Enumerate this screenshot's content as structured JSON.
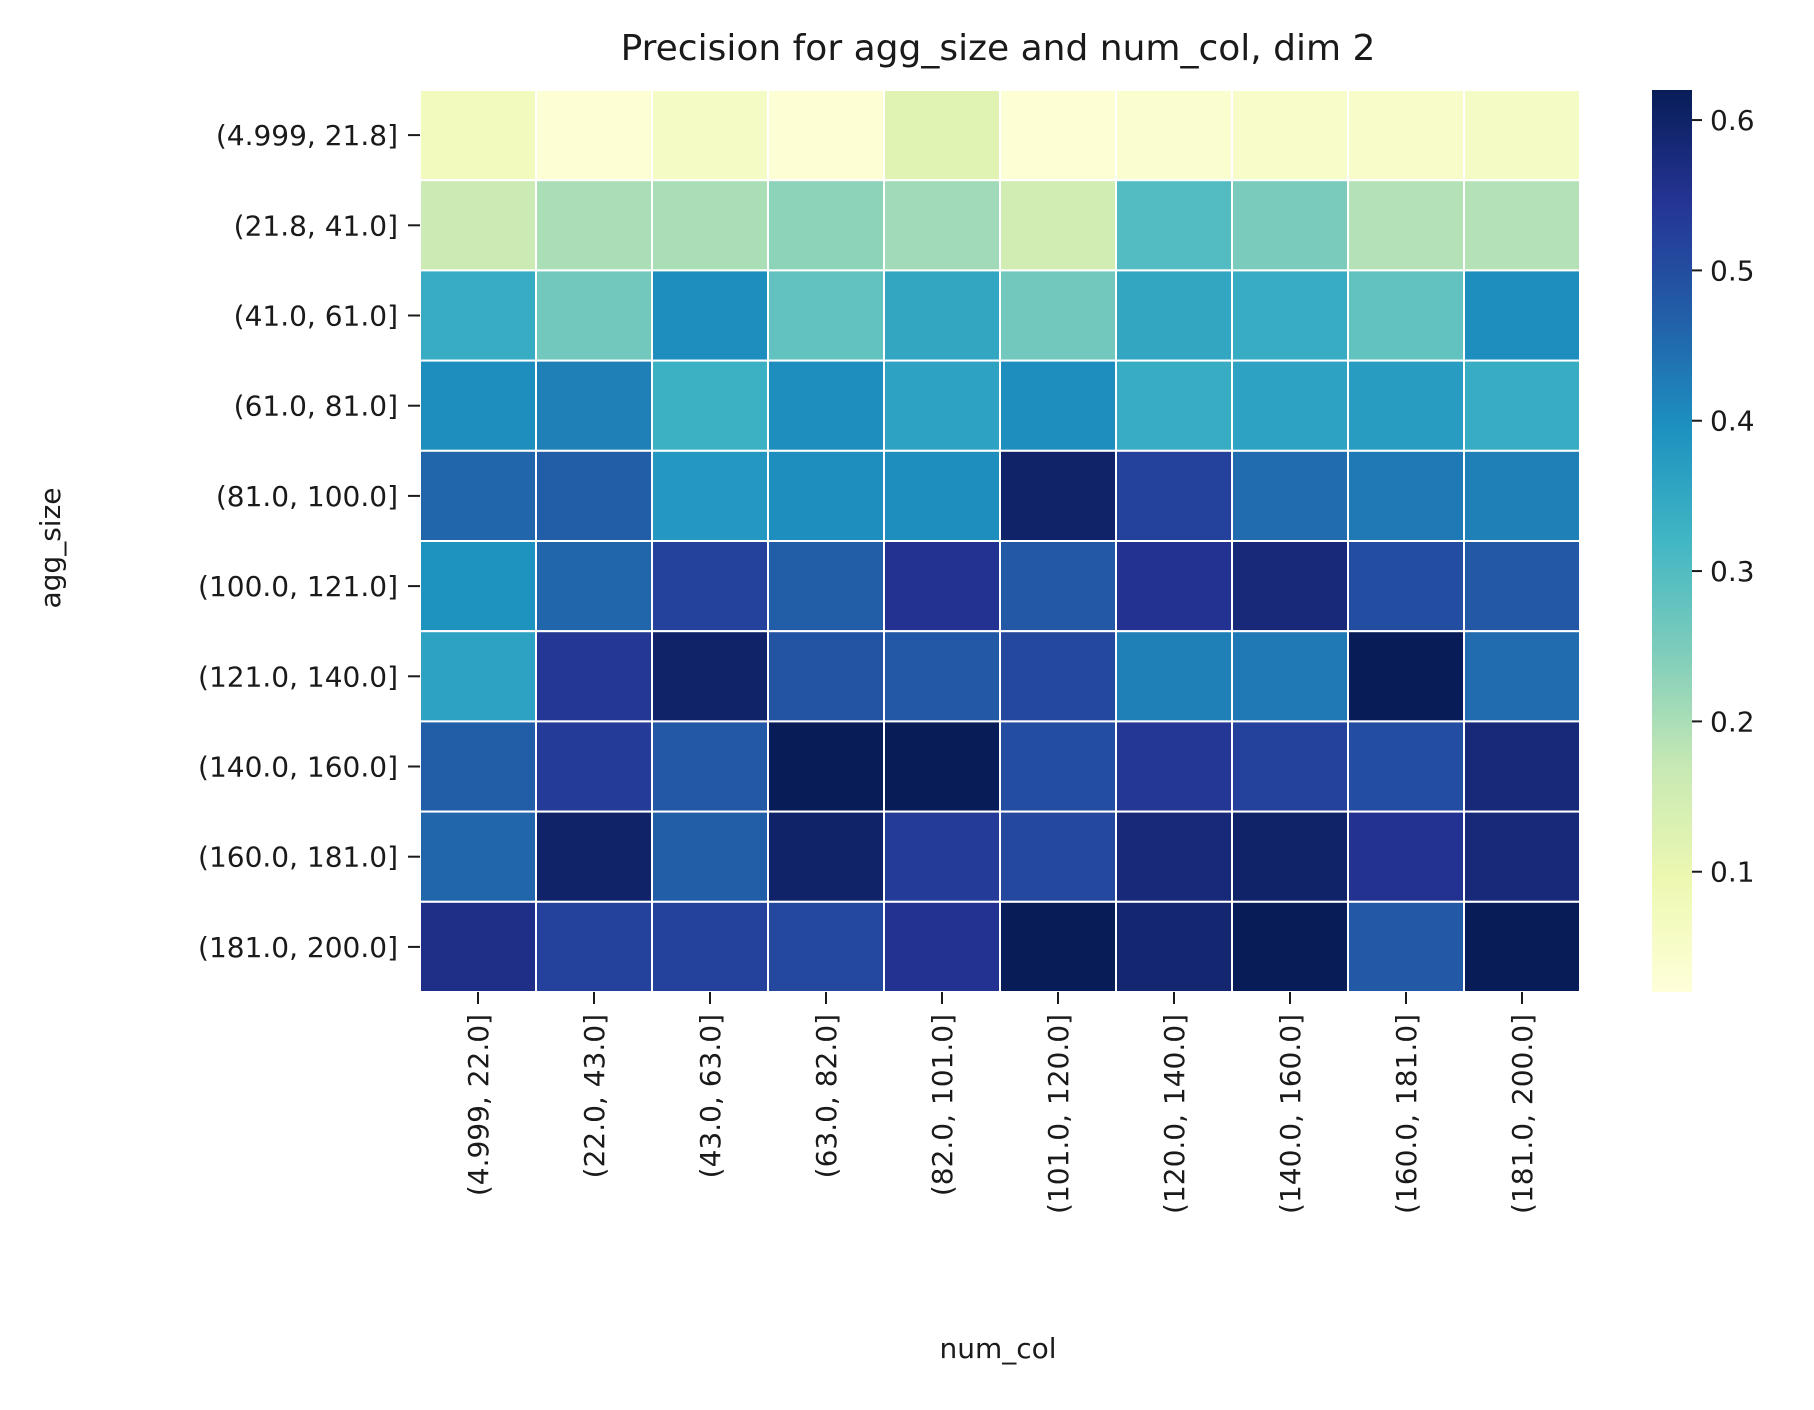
{
  "chart_data": {
    "type": "heatmap",
    "title": "Precision for agg_size and num_col, dim 2",
    "xlabel": "num_col",
    "ylabel": "agg_size",
    "x_categories": [
      "(4.999, 22.0]",
      "(22.0, 43.0]",
      "(43.0, 63.0]",
      "(63.0, 82.0]",
      "(82.0, 101.0]",
      "(101.0, 120.0]",
      "(120.0, 140.0]",
      "(140.0, 160.0]",
      "(160.0, 181.0]",
      "(181.0, 200.0]"
    ],
    "y_categories": [
      "(4.999, 21.8]",
      "(21.8, 41.0]",
      "(41.0, 61.0]",
      "(61.0, 81.0]",
      "(81.0, 100.0]",
      "(100.0, 121.0]",
      "(121.0, 140.0]",
      "(140.0, 160.0]",
      "(160.0, 181.0]",
      "(181.0, 200.0]"
    ],
    "values": [
      [
        0.07,
        0.03,
        0.06,
        0.03,
        0.12,
        0.03,
        0.04,
        0.05,
        0.05,
        0.06
      ],
      [
        0.16,
        0.2,
        0.2,
        0.23,
        0.21,
        0.15,
        0.3,
        0.25,
        0.19,
        0.19
      ],
      [
        0.34,
        0.26,
        0.4,
        0.28,
        0.35,
        0.26,
        0.35,
        0.34,
        0.28,
        0.4
      ],
      [
        0.4,
        0.42,
        0.33,
        0.4,
        0.36,
        0.4,
        0.34,
        0.36,
        0.37,
        0.34
      ],
      [
        0.46,
        0.47,
        0.38,
        0.4,
        0.4,
        0.6,
        0.52,
        0.45,
        0.43,
        0.42
      ],
      [
        0.39,
        0.46,
        0.52,
        0.47,
        0.55,
        0.48,
        0.55,
        0.58,
        0.5,
        0.48
      ],
      [
        0.36,
        0.54,
        0.6,
        0.49,
        0.48,
        0.51,
        0.42,
        0.43,
        0.62,
        0.45
      ],
      [
        0.47,
        0.53,
        0.48,
        0.62,
        0.62,
        0.5,
        0.54,
        0.52,
        0.5,
        0.58
      ],
      [
        0.46,
        0.6,
        0.47,
        0.6,
        0.53,
        0.51,
        0.58,
        0.6,
        0.55,
        0.58
      ],
      [
        0.56,
        0.52,
        0.52,
        0.51,
        0.55,
        0.62,
        0.59,
        0.63,
        0.48,
        0.62
      ]
    ],
    "colorbar": {
      "colormap": "YlGnBu",
      "range": [
        0.02,
        0.62
      ],
      "ticks": [
        "0.1",
        "0.2",
        "0.3",
        "0.4",
        "0.5",
        "0.6"
      ]
    },
    "grid": false,
    "cell_separator_color": "#ffffff"
  }
}
